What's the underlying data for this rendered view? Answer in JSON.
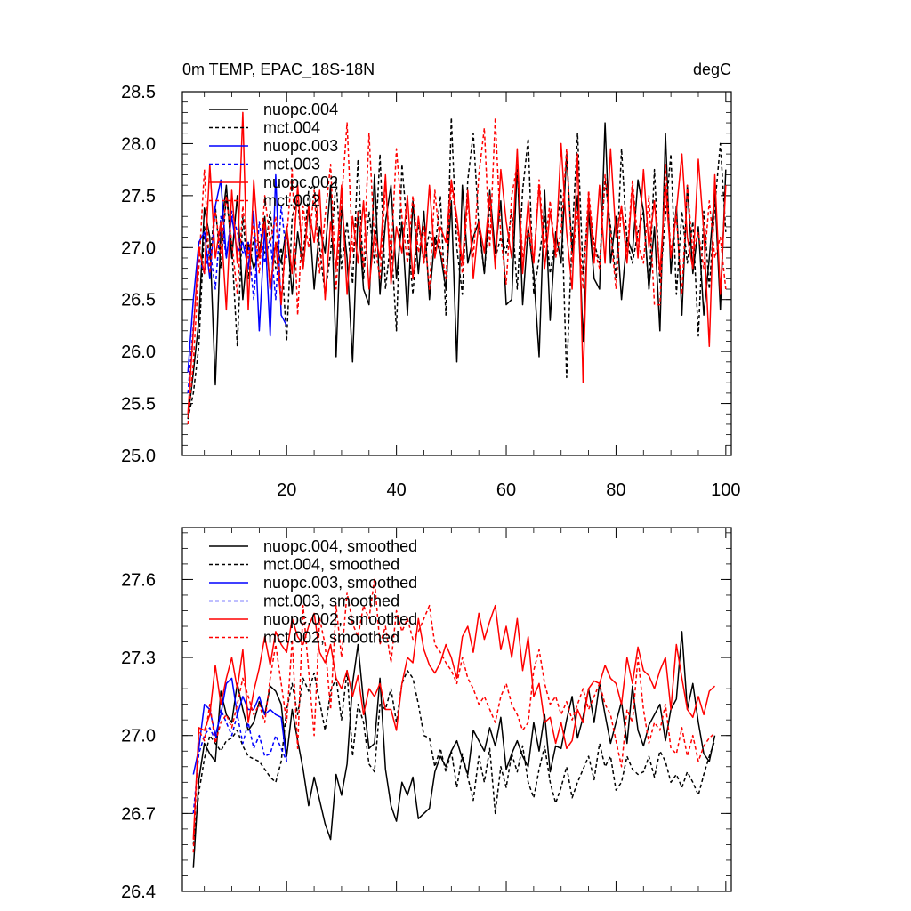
{
  "chart_data": [
    {
      "type": "line",
      "title": "0m TEMP, EPAC_18S-18N",
      "units": "degC",
      "xlim": [
        1,
        101
      ],
      "ylim": [
        25.0,
        28.5
      ],
      "yticks": [
        "25.0",
        "25.5",
        "26.0",
        "26.5",
        "27.0",
        "27.5",
        "28.0",
        "28.5"
      ],
      "xticks": [
        "20",
        "40",
        "60",
        "80",
        "100"
      ],
      "legend": "top-left",
      "series": [
        {
          "name": "nuopc.004",
          "color": "#000000",
          "dash": false,
          "x_start": 2,
          "values": [
            25.35,
            25.8,
            26.3,
            27.38,
            27.1,
            25.68,
            27.15,
            27.6,
            26.9,
            27.5,
            26.5,
            27.05,
            26.8,
            26.95,
            27.3,
            26.6,
            27.05,
            26.85,
            27.2,
            26.55,
            27.15,
            26.8,
            27.4,
            26.6,
            27.2,
            26.95,
            27.6,
            25.95,
            27.4,
            26.9,
            25.9,
            27.35,
            26.6,
            26.45,
            27.7,
            26.55,
            27.25,
            27.6,
            26.7,
            27.25,
            26.35,
            27.45,
            26.75,
            27.35,
            26.5,
            27.1,
            26.95,
            26.6,
            27.45,
            25.9,
            27.6,
            26.85,
            27.1,
            27.25,
            26.75,
            27.55,
            26.95,
            27.45,
            26.45,
            26.5,
            27.8,
            26.45,
            27.2,
            26.75,
            25.95,
            27.55,
            26.3,
            27.15,
            26.85,
            27.9,
            26.95,
            27.5,
            26.1,
            27.35,
            26.7,
            26.6,
            28.2,
            26.85,
            27.3,
            26.5,
            27.1,
            26.95,
            27.65,
            27.35,
            26.6,
            27.2,
            26.2,
            28.1,
            26.75,
            27.4,
            26.35,
            27.6,
            26.75,
            27.2,
            26.35,
            26.9,
            27.55,
            26.4,
            27.75
          ]
        },
        {
          "name": "mct.004",
          "color": "#000000",
          "dash": true,
          "x_start": 2,
          "values": [
            25.35,
            25.6,
            26.05,
            27.2,
            26.9,
            27.4,
            26.8,
            27.5,
            27.0,
            26.05,
            27.3,
            26.7,
            27.1,
            27.05,
            26.95,
            27.35,
            26.8,
            27.0,
            26.1,
            27.3,
            27.45,
            26.9,
            27.55,
            27.6,
            27.0,
            26.55,
            26.95,
            27.65,
            26.8,
            27.25,
            26.65,
            27.85,
            26.7,
            27.35,
            26.85,
            27.9,
            26.6,
            27.1,
            26.2,
            27.8,
            27.15,
            26.55,
            27.25,
            26.85,
            27.15,
            26.95,
            27.5,
            26.35,
            28.25,
            27.0,
            26.55,
            27.65,
            28.1,
            27.2,
            26.75,
            27.4,
            26.9,
            27.1,
            26.95,
            27.35,
            26.6,
            27.55,
            28.05,
            26.55,
            26.9,
            27.3,
            26.75,
            27.1,
            27.55,
            25.75,
            27.1,
            28.1,
            26.75,
            27.4,
            27.05,
            26.85,
            27.65,
            27.2,
            26.7,
            27.95,
            27.05,
            26.85,
            27.15,
            27.35,
            26.6,
            27.75,
            26.65,
            27.3,
            27.9,
            26.55,
            27.35,
            26.85,
            27.25,
            26.15,
            27.35,
            26.6,
            27.4,
            28.0,
            27.15
          ]
        },
        {
          "name": "nuopc.003",
          "color": "#0000ff",
          "dash": false,
          "x_start": 2,
          "values": [
            25.8,
            26.5,
            27.05,
            27.15,
            26.7,
            27.4,
            27.65,
            26.9,
            27.3,
            26.95,
            27.05,
            26.8,
            27.35,
            26.2,
            27.2,
            26.15,
            27.7,
            26.35,
            26.25
          ]
        },
        {
          "name": "mct.003",
          "color": "#0000ff",
          "dash": true,
          "x_start": 2,
          "values": [
            25.6,
            26.25,
            26.9,
            26.75,
            27.0,
            26.6,
            27.3,
            26.9,
            27.35,
            27.15,
            26.95,
            27.05,
            26.5,
            27.25,
            26.85,
            27.1,
            26.5,
            27.4,
            26.9
          ]
        },
        {
          "name": "nuopc.002",
          "color": "#ff0000",
          "dash": false,
          "x_start": 2,
          "values": [
            25.4,
            26.2,
            27.0,
            26.75,
            27.8,
            26.9,
            27.25,
            26.4,
            27.55,
            26.85,
            28.3,
            26.4,
            27.65,
            26.9,
            27.25,
            26.6,
            27.05,
            26.45,
            27.2,
            26.75,
            27.6,
            26.8,
            27.4,
            27.05,
            27.55,
            26.5,
            27.25,
            26.8,
            27.6,
            26.55,
            27.3,
            26.85,
            27.45,
            26.6,
            27.15,
            26.9,
            27.7,
            26.65,
            27.2,
            26.95,
            27.5,
            26.7,
            27.3,
            26.85,
            27.6,
            26.9,
            27.2,
            27.05,
            27.65,
            27.3,
            26.85,
            27.55,
            26.7,
            27.25,
            26.95,
            27.5,
            26.8,
            27.75,
            27.25,
            26.9,
            27.95,
            26.75,
            27.45,
            26.85,
            27.6,
            26.8,
            27.35,
            26.95,
            28.0,
            27.15,
            26.6,
            27.9,
            25.7,
            27.5,
            26.85,
            27.6,
            26.85,
            27.95,
            27.1,
            27.4,
            26.85,
            27.6,
            26.9,
            27.75,
            27.0,
            27.45,
            26.75,
            27.6,
            26.9,
            27.35,
            27.9,
            27.1,
            26.8,
            27.85,
            27.15,
            26.05,
            27.7,
            26.55,
            27.6
          ]
        },
        {
          "name": "mct.002",
          "color": "#ff0000",
          "dash": true,
          "x_start": 2,
          "values": [
            25.3,
            25.9,
            26.8,
            27.75,
            26.75,
            27.35,
            26.95,
            27.5,
            27.05,
            26.55,
            27.4,
            26.9,
            27.25,
            26.75,
            27.5,
            27.05,
            27.3,
            26.5,
            27.1,
            27.75,
            26.35,
            27.4,
            27.0,
            27.55,
            26.75,
            27.3,
            27.8,
            26.6,
            27.45,
            28.2,
            26.95,
            27.35,
            26.8,
            28.1,
            27.05,
            26.7,
            27.6,
            26.9,
            27.95,
            27.3,
            26.85,
            27.5,
            26.95,
            27.2,
            26.6,
            27.55,
            27.0,
            26.7,
            27.6,
            27.25,
            26.75,
            27.45,
            26.9,
            27.7,
            28.15,
            27.0,
            28.25,
            27.1,
            26.65,
            27.5,
            27.8,
            26.9,
            27.2,
            26.85,
            27.65,
            27.0,
            27.45,
            26.9,
            27.15,
            27.95,
            26.85,
            27.35,
            26.6,
            27.55,
            27.0,
            26.8,
            27.7,
            27.15,
            26.6,
            27.4,
            26.95,
            27.65,
            27.05,
            26.85,
            27.5,
            26.45,
            26.45,
            27.8,
            26.95,
            27.3,
            26.55,
            27.6,
            26.95,
            27.15,
            26.8,
            27.45,
            26.9,
            27.1,
            26.6
          ]
        }
      ]
    },
    {
      "type": "line",
      "xlim": [
        1,
        101
      ],
      "ylim": [
        26.4,
        27.8
      ],
      "yticks": [
        "26.4",
        "26.7",
        "27.0",
        "27.3",
        "27.6"
      ],
      "legend": "top-left",
      "series": [
        {
          "name": "nuopc.004, smoothed",
          "color": "#000000",
          "dash": false,
          "x_start": 3,
          "values": [
            26.49,
            26.83,
            26.97,
            26.93,
            26.9,
            27.17,
            27.08,
            27.05,
            27.2,
            27.1,
            27.02,
            27.05,
            27.13,
            27.08,
            27.19,
            27.17,
            27.12,
            26.92,
            27.1,
            26.98,
            26.87,
            26.73,
            26.84,
            26.75,
            26.66,
            26.6,
            26.85,
            26.77,
            26.89,
            27.2,
            27.35,
            27.13,
            26.95,
            26.97,
            27.22,
            26.87,
            26.73,
            26.67,
            26.82,
            26.77,
            26.84,
            26.68,
            26.7,
            26.72,
            26.86,
            26.92,
            26.88,
            26.94,
            26.98,
            26.91,
            26.85,
            27.02,
            26.98,
            26.94,
            27.03,
            26.96,
            27.07,
            26.87,
            26.93,
            26.98,
            26.92,
            26.88,
            27.05,
            26.94,
            27.08,
            26.86,
            26.96,
            26.95,
            27.06,
            27.15,
            26.99,
            27.07,
            27.18,
            27.05,
            27.2,
            27.08,
            26.97,
            27.05,
            27.13,
            26.97,
            27.19,
            27.02,
            26.96,
            27.04,
            27.08,
            27.12,
            26.98,
            27.1,
            27.14,
            27.4,
            27.1,
            27.2,
            27.05,
            26.93,
            26.9,
            27.0
          ]
        },
        {
          "name": "mct.004, smoothed",
          "color": "#000000",
          "dash": true,
          "x_start": 3,
          "values": [
            26.58,
            26.78,
            26.91,
            27.0,
            26.97,
            26.94,
            26.98,
            26.99,
            27.02,
            26.96,
            26.92,
            26.91,
            26.9,
            26.87,
            26.84,
            26.82,
            26.9,
            27.1,
            27.2,
            27.08,
            27.22,
            27.17,
            27.24,
            27.13,
            27.02,
            27.17,
            27.22,
            27.06,
            27.25,
            26.92,
            27.12,
            27.05,
            26.89,
            26.86,
            27.12,
            27.1,
            27.18,
            27.05,
            27.2,
            27.25,
            27.22,
            27.12,
            27.0,
            26.99,
            26.88,
            26.95,
            26.86,
            26.94,
            26.8,
            26.93,
            26.84,
            26.75,
            26.92,
            26.82,
            26.95,
            26.7,
            26.88,
            26.8,
            26.93,
            26.86,
            26.96,
            26.82,
            26.76,
            26.87,
            26.96,
            26.82,
            26.74,
            26.8,
            26.88,
            26.76,
            26.82,
            26.87,
            26.92,
            26.83,
            26.97,
            26.88,
            26.92,
            26.79,
            26.82,
            26.92,
            26.87,
            26.85,
            26.86,
            26.92,
            26.84,
            26.94,
            26.9,
            26.82,
            26.85,
            26.8,
            26.86,
            26.82,
            26.77,
            26.85,
            26.92,
            26.98
          ]
        },
        {
          "name": "nuopc.003, smoothed",
          "color": "#0000ff",
          "dash": false,
          "x_start": 3,
          "values": [
            26.85,
            26.95,
            27.12,
            27.1,
            27.0,
            27.08,
            27.2,
            27.22,
            27.08,
            27.15,
            27.1,
            27.1,
            27.15,
            27.08,
            27.1,
            27.08,
            27.07,
            26.9
          ]
        },
        {
          "name": "mct.003, smoothed",
          "color": "#0000ff",
          "dash": true,
          "x_start": 3,
          "values": [
            26.7,
            26.93,
            27.0,
            27.03,
            26.98,
            27.1,
            27.05,
            27.0,
            27.08,
            26.97,
            27.05,
            26.95,
            27.0,
            26.92,
            26.93,
            27.0,
            26.95,
            26.9
          ]
        },
        {
          "name": "nuopc.002, smoothed",
          "color": "#ff0000",
          "dash": false,
          "x_start": 3,
          "values": [
            26.6,
            27.03,
            27.02,
            27.08,
            27.27,
            27.12,
            27.22,
            27.3,
            27.18,
            27.33,
            27.05,
            27.17,
            27.26,
            27.38,
            27.27,
            27.4,
            27.35,
            27.32,
            27.45,
            27.38,
            27.35,
            27.42,
            27.47,
            27.32,
            27.28,
            27.35,
            27.22,
            27.18,
            27.25,
            27.15,
            27.23,
            27.08,
            27.18,
            27.15,
            27.2,
            27.1,
            27.1,
            27.02,
            27.2,
            27.3,
            27.28,
            27.45,
            27.33,
            27.27,
            27.24,
            27.28,
            27.35,
            27.3,
            27.22,
            27.38,
            27.42,
            27.32,
            27.47,
            27.37,
            27.44,
            27.5,
            27.33,
            27.42,
            27.3,
            27.45,
            27.25,
            27.38,
            27.15,
            27.2,
            27.05,
            27.07,
            26.97,
            27.05,
            26.95,
            26.98,
            27.1,
            27.05,
            27.18,
            27.21,
            27.2,
            27.27,
            27.22,
            27.2,
            27.12,
            27.3,
            27.2,
            27.34,
            27.25,
            27.23,
            27.18,
            27.25,
            27.3,
            27.1,
            27.35,
            27.22,
            27.1,
            27.07,
            27.15,
            27.08,
            27.17,
            27.19
          ]
        },
        {
          "name": "mct.002, smoothed",
          "color": "#ff0000",
          "dash": true,
          "x_start": 3,
          "values": [
            26.55,
            27.02,
            26.98,
            27.12,
            26.97,
            27.05,
            27.08,
            27.03,
            27.12,
            27.22,
            27.15,
            27.08,
            27.12,
            27.05,
            27.22,
            27.35,
            27.2,
            27.05,
            27.37,
            26.95,
            27.5,
            27.25,
            27.0,
            27.45,
            27.35,
            27.1,
            27.5,
            27.3,
            27.55,
            27.43,
            27.38,
            27.5,
            27.45,
            27.6,
            27.35,
            27.42,
            27.28,
            27.48,
            27.4,
            27.45,
            27.37,
            27.4,
            27.45,
            27.5,
            27.35,
            27.32,
            27.28,
            27.25,
            27.2,
            27.3,
            27.22,
            27.18,
            27.12,
            27.15,
            27.1,
            27.05,
            27.15,
            27.2,
            27.12,
            27.08,
            27.02,
            27.05,
            27.25,
            27.33,
            27.2,
            27.12,
            27.15,
            27.08,
            27.13,
            27.06,
            27.12,
            27.18,
            27.1,
            27.15,
            27.2,
            27.12,
            27.08,
            26.98,
            26.88,
            27.1,
            27.05,
            27.3,
            27.1,
            26.97,
            27.05,
            27.02,
            27.12,
            26.95,
            26.93,
            27.03,
            26.92,
            27.0,
            26.9,
            26.96,
            26.99,
            27.01
          ]
        }
      ]
    }
  ]
}
